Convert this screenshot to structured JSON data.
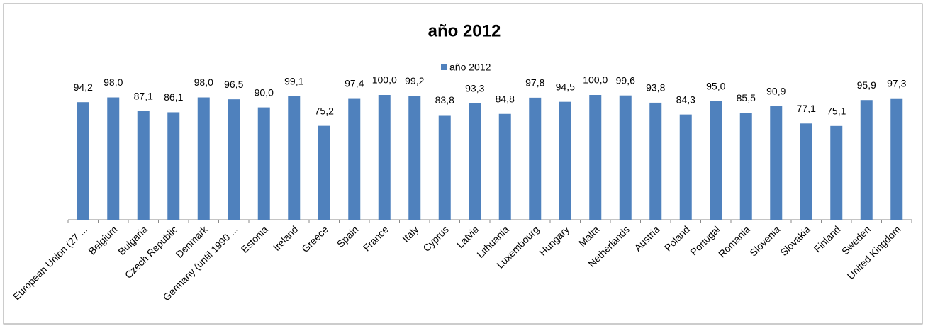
{
  "chart_data": {
    "type": "bar",
    "title": "año 2012",
    "categories": [
      "European Union (27 ...",
      "Belgium",
      "Bulgaria",
      "Czech Republic",
      "Denmark",
      "Germany (until 1990 ...",
      "Estonia",
      "Ireland",
      "Greece",
      "Spain",
      "France",
      "Italy",
      "Cyprus",
      "Latvia",
      "Lithuania",
      "Luxembourg",
      "Hungary",
      "Malta",
      "Netherlands",
      "Austria",
      "Poland",
      "Portugal",
      "Romania",
      "Slovenia",
      "Slovakia",
      "Finland",
      "Sweden",
      "United Kingdom"
    ],
    "series": [
      {
        "name": "año 2012",
        "color": "#4f81bd",
        "values": [
          94.2,
          98.0,
          87.1,
          86.1,
          98.0,
          96.5,
          90.0,
          99.1,
          75.2,
          97.4,
          100.0,
          99.2,
          83.8,
          93.3,
          84.8,
          97.8,
          94.5,
          100.0,
          99.6,
          93.8,
          84.3,
          95.0,
          85.5,
          90.9,
          77.1,
          75.1,
          95.9,
          97.3
        ],
        "value_labels": [
          "94,2",
          "98,0",
          "87,1",
          "86,1",
          "98,0",
          "96,5",
          "90,0",
          "99,1",
          "75,2",
          "97,4",
          "100,0",
          "99,2",
          "83,8",
          "93,3",
          "84,8",
          "97,8",
          "94,5",
          "100,0",
          "99,6",
          "93,8",
          "84,3",
          "95,0",
          "85,5",
          "90,9",
          "77,1",
          "75,1",
          "95,9",
          "97,3"
        ]
      }
    ],
    "ylim": [
      0,
      100
    ],
    "legend": "top"
  }
}
